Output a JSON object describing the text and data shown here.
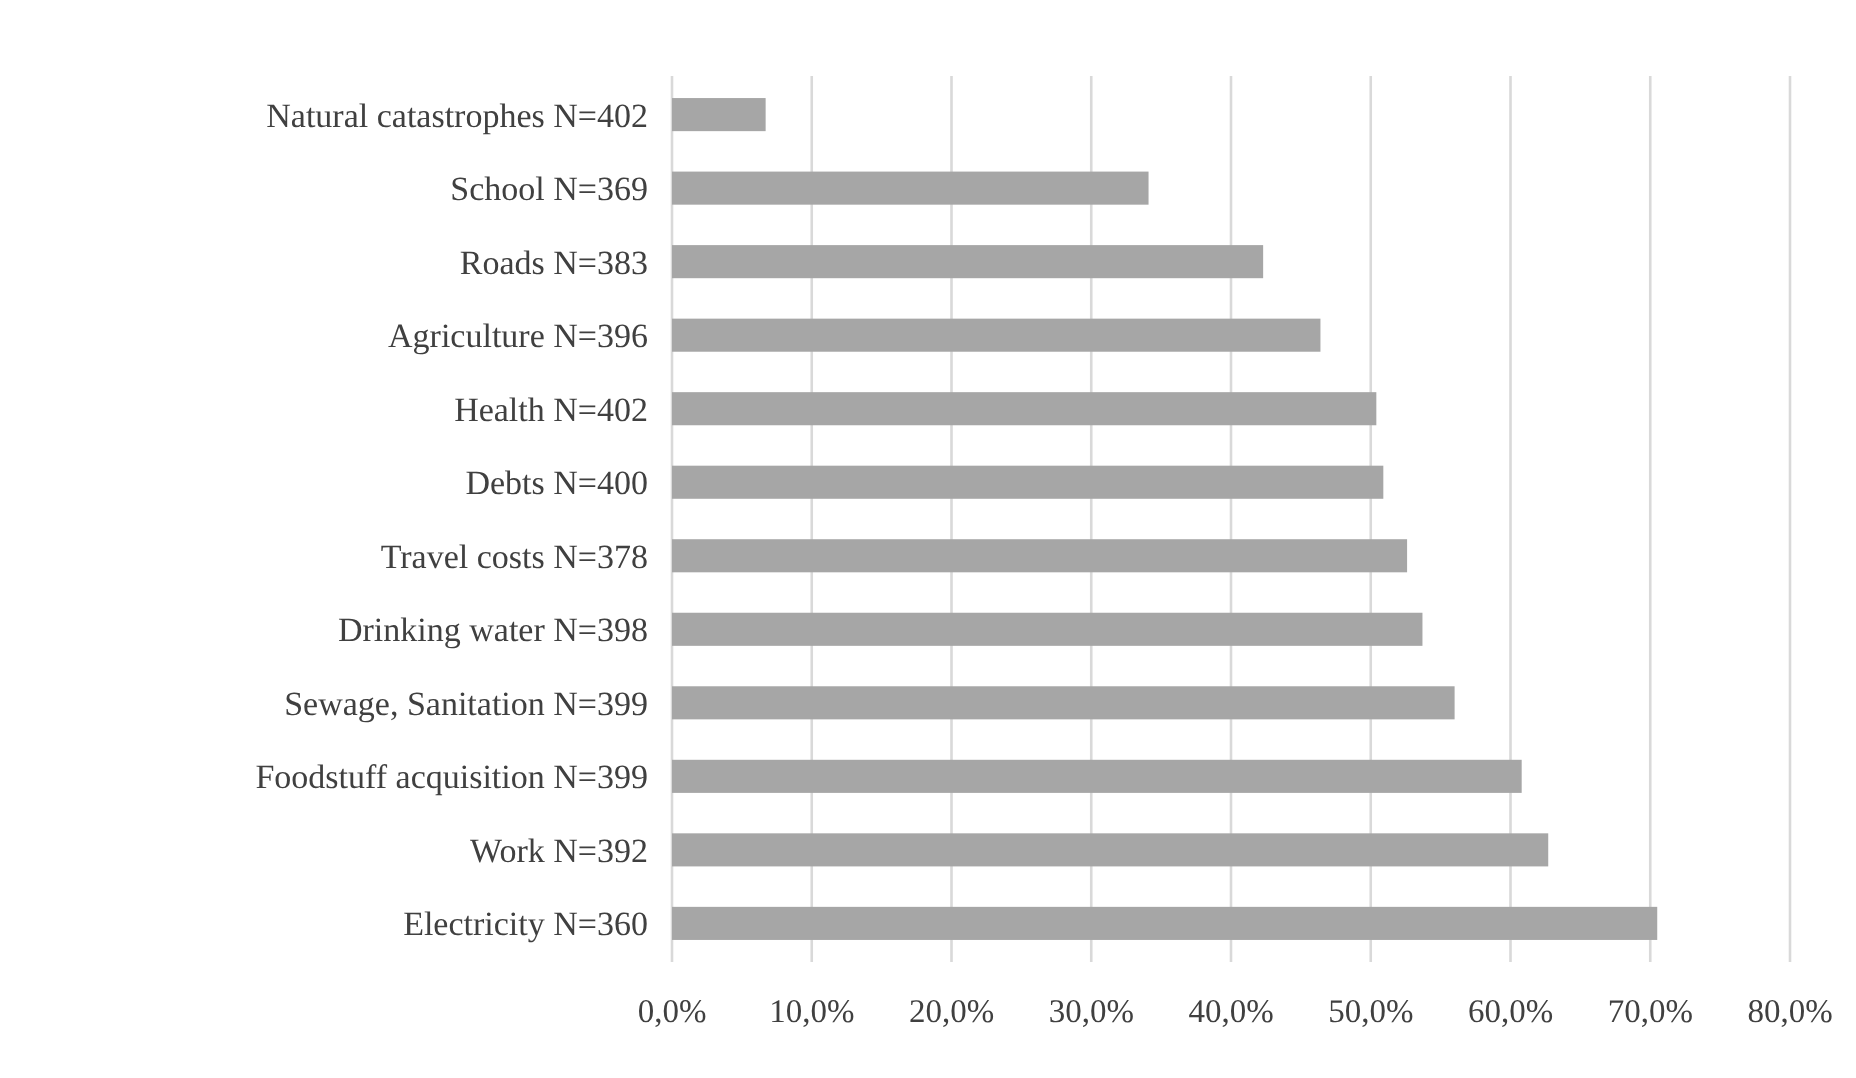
{
  "chart_data": {
    "type": "bar",
    "orientation": "horizontal",
    "categories": [
      "Natural catastrophes N=402",
      "School N=369",
      "Roads N=383",
      "Agriculture N=396",
      "Health N=402",
      "Debts N=400",
      "Travel costs N=378",
      "Drinking water N=398",
      "Sewage, Sanitation N=399",
      "Foodstuff acquisition N=399",
      "Work N=392",
      "Electricity N=360"
    ],
    "values": [
      6.7,
      34.1,
      42.3,
      46.4,
      50.4,
      50.9,
      52.6,
      53.7,
      56.0,
      60.8,
      62.7,
      70.5
    ],
    "color": "#a6a6a6",
    "xlim": [
      0,
      80
    ],
    "xticks": [
      {
        "value": 0,
        "label": "0,0%"
      },
      {
        "value": 10,
        "label": "10,0%"
      },
      {
        "value": 20,
        "label": "20,0%"
      },
      {
        "value": 30,
        "label": "30,0%"
      },
      {
        "value": 40,
        "label": "40,0%"
      },
      {
        "value": 50,
        "label": "50,0%"
      },
      {
        "value": 60,
        "label": "60,0%"
      },
      {
        "value": 70,
        "label": "70,0%"
      },
      {
        "value": 80,
        "label": "80,0%"
      }
    ],
    "grid": "x"
  }
}
